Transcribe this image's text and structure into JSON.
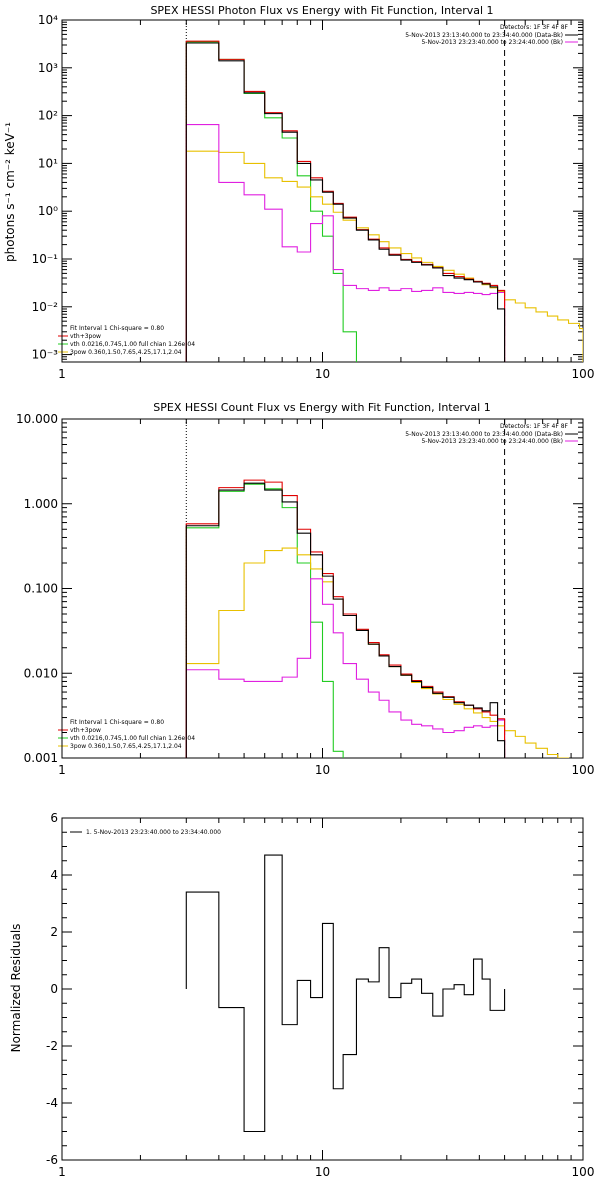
{
  "chart_data": [
    {
      "type": "line",
      "title": "SPEX HESSI Photon Flux vs Energy with Fit Function, Interval 1",
      "ylabel": "photons s⁻¹ cm⁻² keV⁻¹",
      "xlabel": "",
      "xscale": "log",
      "yscale": "log",
      "xlim": [
        1,
        100
      ],
      "ylim": [
        0.0007,
        10000
      ],
      "x_ticks": [
        {
          "value": 1,
          "label": "1"
        },
        {
          "value": 10,
          "label": "10"
        },
        {
          "value": 100,
          "label": "100"
        }
      ],
      "y_ticks": [
        {
          "value": 0.001,
          "label": "10⁻³"
        },
        {
          "value": 0.01,
          "label": "10⁻²"
        },
        {
          "value": 0.1,
          "label": "10⁻¹"
        },
        {
          "value": 1,
          "label": "10⁰"
        },
        {
          "value": 10,
          "label": "10¹"
        },
        {
          "value": 100,
          "label": "10²"
        },
        {
          "value": 1000,
          "label": "10³"
        },
        {
          "value": 10000,
          "label": "10⁴"
        }
      ],
      "vlines": [
        {
          "x": 3,
          "style": "dotted",
          "color": "#000000"
        },
        {
          "x": 50,
          "style": "dashed",
          "color": "#000000"
        }
      ],
      "legend_right": {
        "header": "Detectors: 1F 3F 4F 8F",
        "entries": [
          {
            "text": "5-Nov-2013 23:13:40.000 to 23:34:40.000 (Data-Bk)",
            "color": "#000000"
          },
          {
            "text": "5-Nov-2013 23:23:40.000 to 23:24:40.000 (Bk)",
            "color": "#e020e0"
          }
        ]
      },
      "legend_left": {
        "header": "Fit Interval 1    Chi-square = 0.80",
        "entries": [
          {
            "text": "vth+3pow",
            "color": "#e00000"
          },
          {
            "text": "vth 0.0216,0.745,1.00  full chian 1.26e-04",
            "color": "#22cc22"
          },
          {
            "text": "3pow 0.360,1.50,7.65,4.25,17.1,2.04",
            "color": "#e8c000"
          }
        ]
      },
      "series": [
        {
          "role": "data",
          "color": "#000000",
          "edges": [
            3,
            4,
            5,
            6,
            7,
            8,
            9,
            10,
            11,
            12,
            13.5,
            15,
            16.5,
            18,
            20,
            22,
            24,
            26.5,
            29,
            32,
            35,
            38,
            41,
            44,
            47,
            50
          ],
          "values": [
            3300,
            1400,
            300,
            110,
            45,
            10,
            4.5,
            2.5,
            1.4,
            0.72,
            0.4,
            0.25,
            0.16,
            0.12,
            0.095,
            0.085,
            0.075,
            0.065,
            0.045,
            0.04,
            0.037,
            0.033,
            0.03,
            0.026,
            0.009
          ]
        },
        {
          "role": "model",
          "color": "#e00000",
          "edges": [
            3,
            4,
            5,
            6,
            7,
            8,
            9,
            10,
            11,
            12,
            13.5,
            15,
            16.5,
            18,
            20,
            22,
            24,
            26.5,
            29,
            32,
            35,
            38,
            41,
            44,
            47,
            50
          ],
          "values": [
            3600,
            1500,
            320,
            115,
            48,
            11,
            5,
            2.6,
            1.45,
            0.75,
            0.41,
            0.26,
            0.17,
            0.125,
            0.098,
            0.088,
            0.077,
            0.066,
            0.05,
            0.043,
            0.038,
            0.034,
            0.031,
            0.028,
            0.022
          ]
        },
        {
          "role": "model",
          "color": "#22cc22",
          "edges": [
            3,
            4,
            5,
            6,
            7,
            8,
            9,
            10,
            11,
            12,
            13.5
          ],
          "values": [
            3500,
            1500,
            290,
            90,
            34,
            5.5,
            1,
            0.3,
            0.05,
            0.003
          ]
        },
        {
          "role": "model",
          "color": "#e8c000",
          "edges": [
            3,
            4,
            5,
            6,
            7,
            8,
            9,
            10,
            11,
            12,
            13.5,
            15,
            16.5,
            18,
            20,
            22,
            24,
            26.5,
            29,
            32,
            35,
            38,
            41,
            44,
            47,
            50,
            55,
            60,
            66,
            73,
            80,
            88,
            97,
            100
          ],
          "values": [
            18,
            17,
            10,
            5,
            4.2,
            3.2,
            2,
            1.4,
            0.95,
            0.65,
            0.45,
            0.32,
            0.23,
            0.17,
            0.13,
            0.105,
            0.085,
            0.07,
            0.058,
            0.048,
            0.04,
            0.034,
            0.029,
            0.025,
            0.021,
            0.014,
            0.012,
            0.0095,
            0.0078,
            0.0064,
            0.0053,
            0.0045,
            0.0035
          ]
        },
        {
          "role": "background",
          "color": "#e020e0",
          "edges": [
            3,
            4,
            5,
            6,
            7,
            8,
            9,
            10,
            11,
            12,
            13.5,
            15,
            16.5,
            18,
            20,
            22,
            24,
            26.5,
            29,
            32,
            35,
            38,
            41,
            44,
            47,
            50
          ],
          "values": [
            65,
            4,
            2.2,
            1.1,
            0.18,
            0.14,
            0.55,
            0.8,
            0.06,
            0.028,
            0.024,
            0.022,
            0.025,
            0.022,
            0.024,
            0.021,
            0.022,
            0.025,
            0.02,
            0.019,
            0.02,
            0.019,
            0.018,
            0.019,
            0.02
          ]
        }
      ]
    },
    {
      "type": "line",
      "title": "SPEX HESSI Count Flux vs Energy with Fit Function, Interval 1",
      "ylabel": "",
      "xlabel": "",
      "xscale": "log",
      "yscale": "log",
      "xlim": [
        1,
        100
      ],
      "ylim": [
        0.001,
        10
      ],
      "x_ticks": [
        {
          "value": 1,
          "label": "1"
        },
        {
          "value": 10,
          "label": "10"
        },
        {
          "value": 100,
          "label": "100"
        }
      ],
      "y_ticks": [
        {
          "value": 0.001,
          "label": "0.001"
        },
        {
          "value": 0.01,
          "label": "0.010"
        },
        {
          "value": 0.1,
          "label": "0.100"
        },
        {
          "value": 1,
          "label": "1.000"
        },
        {
          "value": 10,
          "label": "10.000"
        }
      ],
      "vlines": [
        {
          "x": 3,
          "style": "dotted",
          "color": "#000000"
        },
        {
          "x": 50,
          "style": "dashed",
          "color": "#000000"
        }
      ],
      "legend_right": {
        "header": "Detectors: 1F 3F 4F 8F",
        "entries": [
          {
            "text": "5-Nov-2013 23:13:40.000 to 23:34:40.000 (Data-Bk)",
            "color": "#000000"
          },
          {
            "text": "5-Nov-2013 23:23:40.000 to 23:24:40.000 (Bk)",
            "color": "#e020e0"
          }
        ]
      },
      "legend_left": {
        "header": "Fit Interval 1    Chi-square = 0.80",
        "entries": [
          {
            "text": "vth+3pow",
            "color": "#e00000"
          },
          {
            "text": "vth 0.0216,0.745,1.00  full chian 1.26e-04",
            "color": "#22cc22"
          },
          {
            "text": "3pow 0.360,1.50,7.65,4.25,17.1,2.04",
            "color": "#e8c000"
          }
        ]
      },
      "series": [
        {
          "role": "data",
          "color": "#000000",
          "edges": [
            3,
            4,
            5,
            6,
            7,
            8,
            9,
            10,
            11,
            12,
            13.5,
            15,
            16.5,
            18,
            20,
            22,
            24,
            26.5,
            29,
            32,
            35,
            38,
            41,
            44,
            47,
            50
          ],
          "values": [
            0.55,
            1.45,
            1.75,
            1.45,
            1.05,
            0.45,
            0.25,
            0.14,
            0.075,
            0.048,
            0.032,
            0.022,
            0.016,
            0.012,
            0.0095,
            0.008,
            0.0068,
            0.0058,
            0.0052,
            0.0045,
            0.0042,
            0.0039,
            0.0036,
            0.0045,
            0.0016
          ]
        },
        {
          "role": "model",
          "color": "#e00000",
          "edges": [
            3,
            4,
            5,
            6,
            7,
            8,
            9,
            10,
            11,
            12,
            13.5,
            15,
            16.5,
            18,
            20,
            22,
            24,
            26.5,
            29,
            32,
            35,
            38,
            41,
            44,
            47,
            50
          ],
          "values": [
            0.58,
            1.55,
            1.9,
            1.8,
            1.25,
            0.5,
            0.27,
            0.15,
            0.08,
            0.05,
            0.033,
            0.023,
            0.0165,
            0.0125,
            0.0098,
            0.0082,
            0.007,
            0.006,
            0.0053,
            0.0046,
            0.0042,
            0.0038,
            0.0035,
            0.0032,
            0.0029
          ]
        },
        {
          "role": "model",
          "color": "#22cc22",
          "edges": [
            3,
            4,
            5,
            6,
            7,
            8,
            9,
            10,
            11,
            12
          ],
          "values": [
            0.52,
            1.4,
            1.7,
            1.5,
            0.9,
            0.2,
            0.04,
            0.008,
            0.0012
          ]
        },
        {
          "role": "model",
          "color": "#e8c000",
          "edges": [
            3,
            4,
            5,
            6,
            7,
            8,
            9,
            10,
            11,
            12,
            13.5,
            15,
            16.5,
            18,
            20,
            22,
            24,
            26.5,
            29,
            32,
            35,
            38,
            41,
            44,
            47,
            50,
            55,
            60,
            66,
            73,
            80,
            88
          ],
          "values": [
            0.013,
            0.055,
            0.2,
            0.28,
            0.3,
            0.25,
            0.17,
            0.12,
            0.075,
            0.048,
            0.032,
            0.022,
            0.016,
            0.012,
            0.0095,
            0.0078,
            0.0066,
            0.0057,
            0.0049,
            0.0043,
            0.0038,
            0.0034,
            0.003,
            0.0027,
            0.0024,
            0.0021,
            0.0018,
            0.0015,
            0.0013,
            0.0011,
            0.001
          ]
        },
        {
          "role": "background",
          "color": "#e020e0",
          "edges": [
            3,
            4,
            5,
            6,
            7,
            8,
            9,
            10,
            11,
            12,
            13.5,
            15,
            16.5,
            18,
            20,
            22,
            24,
            26.5,
            29,
            32,
            35,
            38,
            41,
            44,
            47,
            50
          ],
          "values": [
            0.011,
            0.0085,
            0.008,
            0.008,
            0.009,
            0.015,
            0.13,
            0.065,
            0.03,
            0.013,
            0.0085,
            0.006,
            0.0048,
            0.0035,
            0.0028,
            0.0025,
            0.0024,
            0.0022,
            0.002,
            0.0021,
            0.0023,
            0.0024,
            0.0023,
            0.0024,
            0.0028
          ]
        }
      ]
    },
    {
      "type": "line",
      "title": "",
      "ylabel": "Normalized Residuals",
      "xlabel": "",
      "xscale": "log",
      "yscale": "linear",
      "xlim": [
        1,
        100
      ],
      "ylim": [
        -6,
        6
      ],
      "x_ticks": [
        {
          "value": 1,
          "label": "1"
        },
        {
          "value": 10,
          "label": "10"
        },
        {
          "value": 100,
          "label": "100"
        }
      ],
      "y_ticks": [
        {
          "value": -6,
          "label": "-6"
        },
        {
          "value": -4,
          "label": "-4"
        },
        {
          "value": -2,
          "label": "-2"
        },
        {
          "value": 0,
          "label": "0"
        },
        {
          "value": 2,
          "label": "2"
        },
        {
          "value": 4,
          "label": "4"
        },
        {
          "value": 6,
          "label": "6"
        }
      ],
      "legend_left": {
        "header": "",
        "entries": [
          {
            "text": "1.  5-Nov-2013 23:23:40.000 to 23:34:40.000",
            "color": "#000000"
          }
        ]
      },
      "series": [
        {
          "role": "residuals",
          "color": "#000000",
          "edges": [
            3,
            4,
            5,
            6,
            7,
            8,
            9,
            10,
            11,
            12,
            13.5,
            15,
            16.5,
            18,
            20,
            22,
            24,
            26.5,
            29,
            32,
            35,
            38,
            41,
            44,
            47,
            50
          ],
          "values": [
            3.4,
            -0.65,
            -5.0,
            4.7,
            -1.25,
            0.3,
            -0.3,
            2.3,
            -3.5,
            -2.3,
            0.35,
            0.25,
            1.45,
            -0.3,
            0.2,
            0.35,
            -0.15,
            -0.95,
            0.0,
            0.15,
            -0.2,
            1.05,
            0.35,
            -0.75,
            -0.75
          ]
        }
      ]
    }
  ]
}
